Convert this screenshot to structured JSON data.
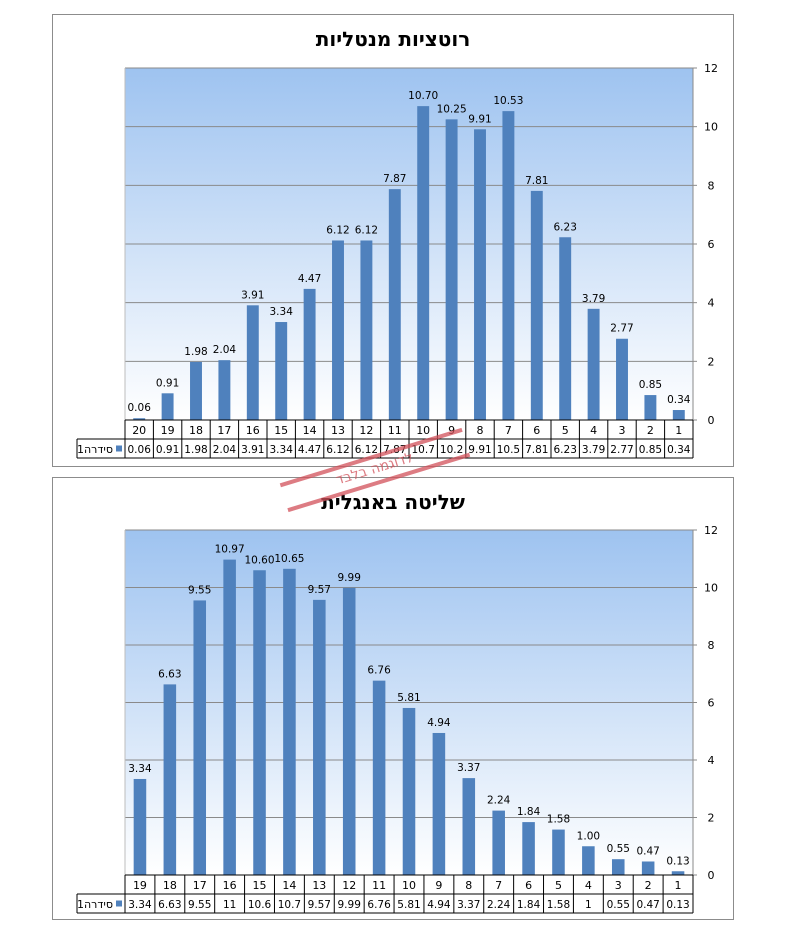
{
  "chart_data": [
    {
      "type": "bar",
      "title": "רוטציות מנטליות",
      "categories": [
        "20",
        "19",
        "18",
        "17",
        "16",
        "15",
        "14",
        "13",
        "12",
        "11",
        "10",
        "9",
        "8",
        "7",
        "6",
        "5",
        "4",
        "3",
        "2",
        "1"
      ],
      "series": [
        {
          "name": "סידרה1",
          "values": [
            0.06,
            0.91,
            1.98,
            2.04,
            3.91,
            3.34,
            4.47,
            6.12,
            6.12,
            7.87,
            10.7,
            10.25,
            9.91,
            10.53,
            7.81,
            6.23,
            3.79,
            2.77,
            0.85,
            0.34
          ],
          "value_labels": [
            "0.06",
            "0.91",
            "1.98",
            "2.04",
            "3.91",
            "3.34",
            "4.47",
            "6.12",
            "6.12",
            "7.87",
            "10.70",
            "10.25",
            "9.91",
            "10.53",
            "7.81",
            "6.23",
            "3.79",
            "2.77",
            "0.85",
            "0.34"
          ],
          "table_labels": [
            "0.06",
            "0.91",
            "1.98",
            "2.04",
            "3.91",
            "3.34",
            "4.47",
            "6.12",
            "6.12",
            "7.87",
            "10.7",
            "10.2",
            "9.91",
            "10.5",
            "7.81",
            "6.23",
            "3.79",
            "2.77",
            "0.85",
            "0.34"
          ]
        }
      ],
      "ylim": [
        0,
        12
      ],
      "yticks": [
        "0",
        "2",
        "4",
        "6",
        "8",
        "10",
        "12"
      ],
      "y_axis_side": "right",
      "grid": true,
      "data_table": true,
      "bar_color": "#4f81bd"
    },
    {
      "type": "bar",
      "title": "שליטה באנגלית",
      "categories": [
        "19",
        "18",
        "17",
        "16",
        "15",
        "14",
        "13",
        "12",
        "11",
        "10",
        "9",
        "8",
        "7",
        "6",
        "5",
        "4",
        "3",
        "2",
        "1"
      ],
      "series": [
        {
          "name": "סידרה1",
          "values": [
            3.34,
            6.63,
            9.55,
            10.97,
            10.6,
            10.65,
            9.57,
            9.99,
            6.76,
            5.81,
            4.94,
            3.37,
            2.24,
            1.84,
            1.58,
            1.0,
            0.55,
            0.47,
            0.13
          ],
          "value_labels": [
            "3.34",
            "6.63",
            "9.55",
            "10.97",
            "10.60",
            "10.65",
            "9.57",
            "9.99",
            "6.76",
            "5.81",
            "4.94",
            "3.37",
            "2.24",
            "1.84",
            "1.58",
            "1.00",
            "0.55",
            "0.47",
            "0.13"
          ],
          "table_labels": [
            "3.34",
            "6.63",
            "9.55",
            "11",
            "10.6",
            "10.7",
            "9.57",
            "9.99",
            "6.76",
            "5.81",
            "4.94",
            "3.37",
            "2.24",
            "1.84",
            "1.58",
            "1",
            "0.55",
            "0.47",
            "0.13"
          ]
        }
      ],
      "ylim": [
        0,
        12
      ],
      "yticks": [
        "0",
        "2",
        "4",
        "6",
        "8",
        "10",
        "12"
      ],
      "y_axis_side": "right",
      "grid": true,
      "data_table": true,
      "bar_color": "#4f81bd"
    }
  ],
  "watermark": {
    "text": "לדוגמה בלבד"
  },
  "colors": {
    "bar": "#4f81bd",
    "plot_top": "#9ec3f0",
    "plot_bottom": "#ffffff",
    "grid": "#8a8a8a"
  }
}
